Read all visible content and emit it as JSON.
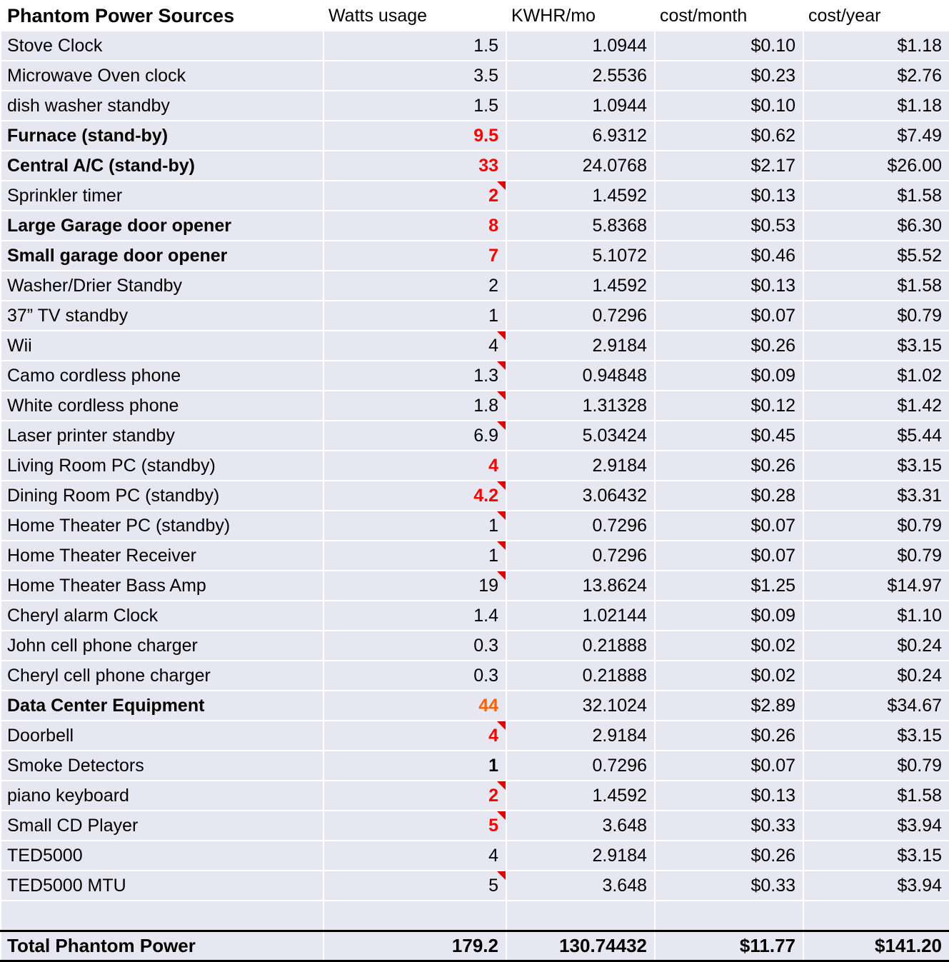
{
  "colors": {
    "red": "#ff0000",
    "orange": "#ff6000",
    "row_bg": "#e7e7f1",
    "grid": "#ffffff"
  },
  "table": {
    "columns": [
      "Phantom Power Sources",
      "Watts usage",
      "KWHR/mo",
      "cost/month",
      "cost/year"
    ],
    "rows": [
      {
        "label": "Stove Clock",
        "watts": "1.5",
        "kwhr": "1.0944",
        "cost_month": "$0.10",
        "cost_year": "$1.18",
        "label_bold": false,
        "watts_color": "black",
        "watts_bold": false,
        "comment": false
      },
      {
        "label": "Microwave Oven clock",
        "watts": "3.5",
        "kwhr": "2.5536",
        "cost_month": "$0.23",
        "cost_year": "$2.76",
        "label_bold": false,
        "watts_color": "black",
        "watts_bold": false,
        "comment": false
      },
      {
        "label": "dish washer standby",
        "watts": "1.5",
        "kwhr": "1.0944",
        "cost_month": "$0.10",
        "cost_year": "$1.18",
        "label_bold": false,
        "watts_color": "black",
        "watts_bold": false,
        "comment": false
      },
      {
        "label": "Furnace (stand-by)",
        "watts": "9.5",
        "kwhr": "6.9312",
        "cost_month": "$0.62",
        "cost_year": "$7.49",
        "label_bold": true,
        "watts_color": "red",
        "watts_bold": true,
        "comment": false
      },
      {
        "label": "Central A/C (stand-by)",
        "watts": "33",
        "kwhr": "24.0768",
        "cost_month": "$2.17",
        "cost_year": "$26.00",
        "label_bold": true,
        "watts_color": "red",
        "watts_bold": true,
        "comment": false
      },
      {
        "label": "Sprinkler timer",
        "watts": "2",
        "kwhr": "1.4592",
        "cost_month": "$0.13",
        "cost_year": "$1.58",
        "label_bold": false,
        "watts_color": "red",
        "watts_bold": true,
        "comment": true
      },
      {
        "label": "Large Garage door opener",
        "watts": "8",
        "kwhr": "5.8368",
        "cost_month": "$0.53",
        "cost_year": "$6.30",
        "label_bold": true,
        "watts_color": "red",
        "watts_bold": true,
        "comment": false
      },
      {
        "label": "Small garage door opener",
        "watts": "7",
        "kwhr": "5.1072",
        "cost_month": "$0.46",
        "cost_year": "$5.52",
        "label_bold": true,
        "watts_color": "red",
        "watts_bold": true,
        "comment": false
      },
      {
        "label": "Washer/Drier Standby",
        "watts": "2",
        "kwhr": "1.4592",
        "cost_month": "$0.13",
        "cost_year": "$1.58",
        "label_bold": false,
        "watts_color": "black",
        "watts_bold": false,
        "comment": false
      },
      {
        "label": "37” TV standby",
        "watts": "1",
        "kwhr": "0.7296",
        "cost_month": "$0.07",
        "cost_year": "$0.79",
        "label_bold": false,
        "watts_color": "black",
        "watts_bold": false,
        "comment": false
      },
      {
        "label": "Wii",
        "watts": "4",
        "kwhr": "2.9184",
        "cost_month": "$0.26",
        "cost_year": "$3.15",
        "label_bold": false,
        "watts_color": "black",
        "watts_bold": false,
        "comment": true
      },
      {
        "label": "Camo cordless phone",
        "watts": "1.3",
        "kwhr": "0.94848",
        "cost_month": "$0.09",
        "cost_year": "$1.02",
        "label_bold": false,
        "watts_color": "black",
        "watts_bold": false,
        "comment": true
      },
      {
        "label": "White cordless phone",
        "watts": "1.8",
        "kwhr": "1.31328",
        "cost_month": "$0.12",
        "cost_year": "$1.42",
        "label_bold": false,
        "watts_color": "black",
        "watts_bold": false,
        "comment": true
      },
      {
        "label": "Laser printer standby",
        "watts": "6.9",
        "kwhr": "5.03424",
        "cost_month": "$0.45",
        "cost_year": "$5.44",
        "label_bold": false,
        "watts_color": "black",
        "watts_bold": false,
        "comment": true
      },
      {
        "label": "Living Room PC (standby)",
        "watts": "4",
        "kwhr": "2.9184",
        "cost_month": "$0.26",
        "cost_year": "$3.15",
        "label_bold": false,
        "watts_color": "red",
        "watts_bold": true,
        "comment": false
      },
      {
        "label": "Dining Room PC (standby)",
        "watts": "4.2",
        "kwhr": "3.06432",
        "cost_month": "$0.28",
        "cost_year": "$3.31",
        "label_bold": false,
        "watts_color": "red",
        "watts_bold": true,
        "comment": true
      },
      {
        "label": "Home Theater PC (standby)",
        "watts": "1",
        "kwhr": "0.7296",
        "cost_month": "$0.07",
        "cost_year": "$0.79",
        "label_bold": false,
        "watts_color": "black",
        "watts_bold": false,
        "comment": true
      },
      {
        "label": "Home Theater Receiver",
        "watts": "1",
        "kwhr": "0.7296",
        "cost_month": "$0.07",
        "cost_year": "$0.79",
        "label_bold": false,
        "watts_color": "black",
        "watts_bold": false,
        "comment": true
      },
      {
        "label": "Home Theater Bass Amp",
        "watts": "19",
        "kwhr": "13.8624",
        "cost_month": "$1.25",
        "cost_year": "$14.97",
        "label_bold": false,
        "watts_color": "black",
        "watts_bold": false,
        "comment": true
      },
      {
        "label": "Cheryl alarm Clock",
        "watts": "1.4",
        "kwhr": "1.02144",
        "cost_month": "$0.09",
        "cost_year": "$1.10",
        "label_bold": false,
        "watts_color": "black",
        "watts_bold": false,
        "comment": false
      },
      {
        "label": "John cell phone charger",
        "watts": "0.3",
        "kwhr": "0.21888",
        "cost_month": "$0.02",
        "cost_year": "$0.24",
        "label_bold": false,
        "watts_color": "black",
        "watts_bold": false,
        "comment": false
      },
      {
        "label": "Cheryl cell phone charger",
        "watts": "0.3",
        "kwhr": "0.21888",
        "cost_month": "$0.02",
        "cost_year": "$0.24",
        "label_bold": false,
        "watts_color": "black",
        "watts_bold": false,
        "comment": false
      },
      {
        "label": "Data Center Equipment",
        "watts": "44",
        "kwhr": "32.1024",
        "cost_month": "$2.89",
        "cost_year": "$34.67",
        "label_bold": true,
        "watts_color": "orange",
        "watts_bold": true,
        "comment": false
      },
      {
        "label": "Doorbell",
        "watts": "4",
        "kwhr": "2.9184",
        "cost_month": "$0.26",
        "cost_year": "$3.15",
        "label_bold": false,
        "watts_color": "red",
        "watts_bold": true,
        "comment": true
      },
      {
        "label": "Smoke Detectors",
        "watts": "1",
        "kwhr": "0.7296",
        "cost_month": "$0.07",
        "cost_year": "$0.79",
        "label_bold": false,
        "watts_color": "black",
        "watts_bold": true,
        "comment": false
      },
      {
        "label": "piano keyboard",
        "watts": "2",
        "kwhr": "1.4592",
        "cost_month": "$0.13",
        "cost_year": "$1.58",
        "label_bold": false,
        "watts_color": "red",
        "watts_bold": true,
        "comment": true
      },
      {
        "label": "Small CD Player",
        "watts": "5",
        "kwhr": "3.648",
        "cost_month": "$0.33",
        "cost_year": "$3.94",
        "label_bold": false,
        "watts_color": "red",
        "watts_bold": true,
        "comment": true
      },
      {
        "label": "TED5000",
        "watts": "4",
        "kwhr": "2.9184",
        "cost_month": "$0.26",
        "cost_year": "$3.15",
        "label_bold": false,
        "watts_color": "black",
        "watts_bold": false,
        "comment": false
      },
      {
        "label": "TED5000 MTU",
        "watts": "5",
        "kwhr": "3.648",
        "cost_month": "$0.33",
        "cost_year": "$3.94",
        "label_bold": false,
        "watts_color": "black",
        "watts_bold": false,
        "comment": true
      },
      {
        "type": "empty",
        "label": "",
        "watts": "",
        "kwhr": "",
        "cost_month": "",
        "cost_year": "",
        "label_bold": false,
        "watts_color": "black",
        "watts_bold": false,
        "comment": false
      },
      {
        "type": "total",
        "label": "Total Phantom Power",
        "watts": "179.2",
        "kwhr": "130.74432",
        "cost_month": "$11.77",
        "cost_year": "$141.20",
        "label_bold": true,
        "watts_color": "black",
        "watts_bold": true,
        "comment": false
      }
    ]
  }
}
